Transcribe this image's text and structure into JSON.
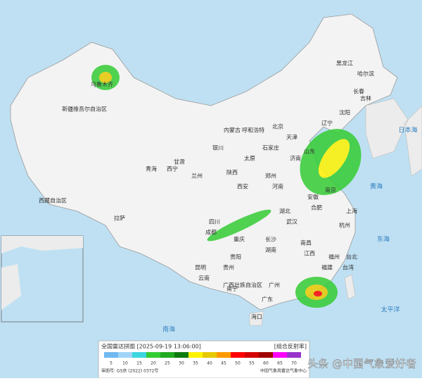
{
  "map": {
    "places": [
      "黑龙江",
      "哈尔滨",
      "吉林",
      "长春",
      "沈阳",
      "辽宁",
      "内蒙古",
      "呼和浩特",
      "北京",
      "天津",
      "石家庄",
      "太原",
      "济南",
      "山东",
      "郑州",
      "河南",
      "西安",
      "陕西",
      "兰州",
      "甘肃",
      "西宁",
      "青海",
      "银川",
      "乌鲁木齐",
      "新疆维吾尔自治区",
      "西藏自治区",
      "拉萨",
      "四川",
      "成都",
      "重庆",
      "贵阳",
      "贵州",
      "云南",
      "昆明",
      "广西壮族自治区",
      "南宁",
      "广州",
      "广东",
      "湖南",
      "长沙",
      "武汉",
      "湖北",
      "南昌",
      "江西",
      "合肥",
      "安徽",
      "南京",
      "上海",
      "杭州",
      "福州",
      "福建",
      "台北",
      "台湾",
      "海口"
    ],
    "seas": [
      "日本海",
      "黄海",
      "东海",
      "太平洋",
      "南海"
    ]
  },
  "legend": {
    "title": "全国雷达拼图 [2025-09-19 13:06:00]",
    "product": "[组合反射率]",
    "items": [
      {
        "value": 5,
        "color": "#6fb8f0"
      },
      {
        "value": 10,
        "color": "#9fd4f7"
      },
      {
        "value": 15,
        "color": "#3cd6e0"
      },
      {
        "value": 20,
        "color": "#33cc33"
      },
      {
        "value": 25,
        "color": "#22aa22"
      },
      {
        "value": 30,
        "color": "#0f7a0f"
      },
      {
        "value": 35,
        "color": "#fff200"
      },
      {
        "value": 40,
        "color": "#e6c800"
      },
      {
        "value": 45,
        "color": "#ff9900"
      },
      {
        "value": 50,
        "color": "#ff0000"
      },
      {
        "value": 55,
        "color": "#d40000"
      },
      {
        "value": 60,
        "color": "#a00000"
      },
      {
        "value": 65,
        "color": "#ff00ff"
      },
      {
        "value": 70,
        "color": "#9933cc"
      }
    ],
    "approval": "审图号: GS京 (2022) 0372号",
    "source": "中国气象局雷达气象中心"
  },
  "watermark": "头条 @中国气象爱好者"
}
